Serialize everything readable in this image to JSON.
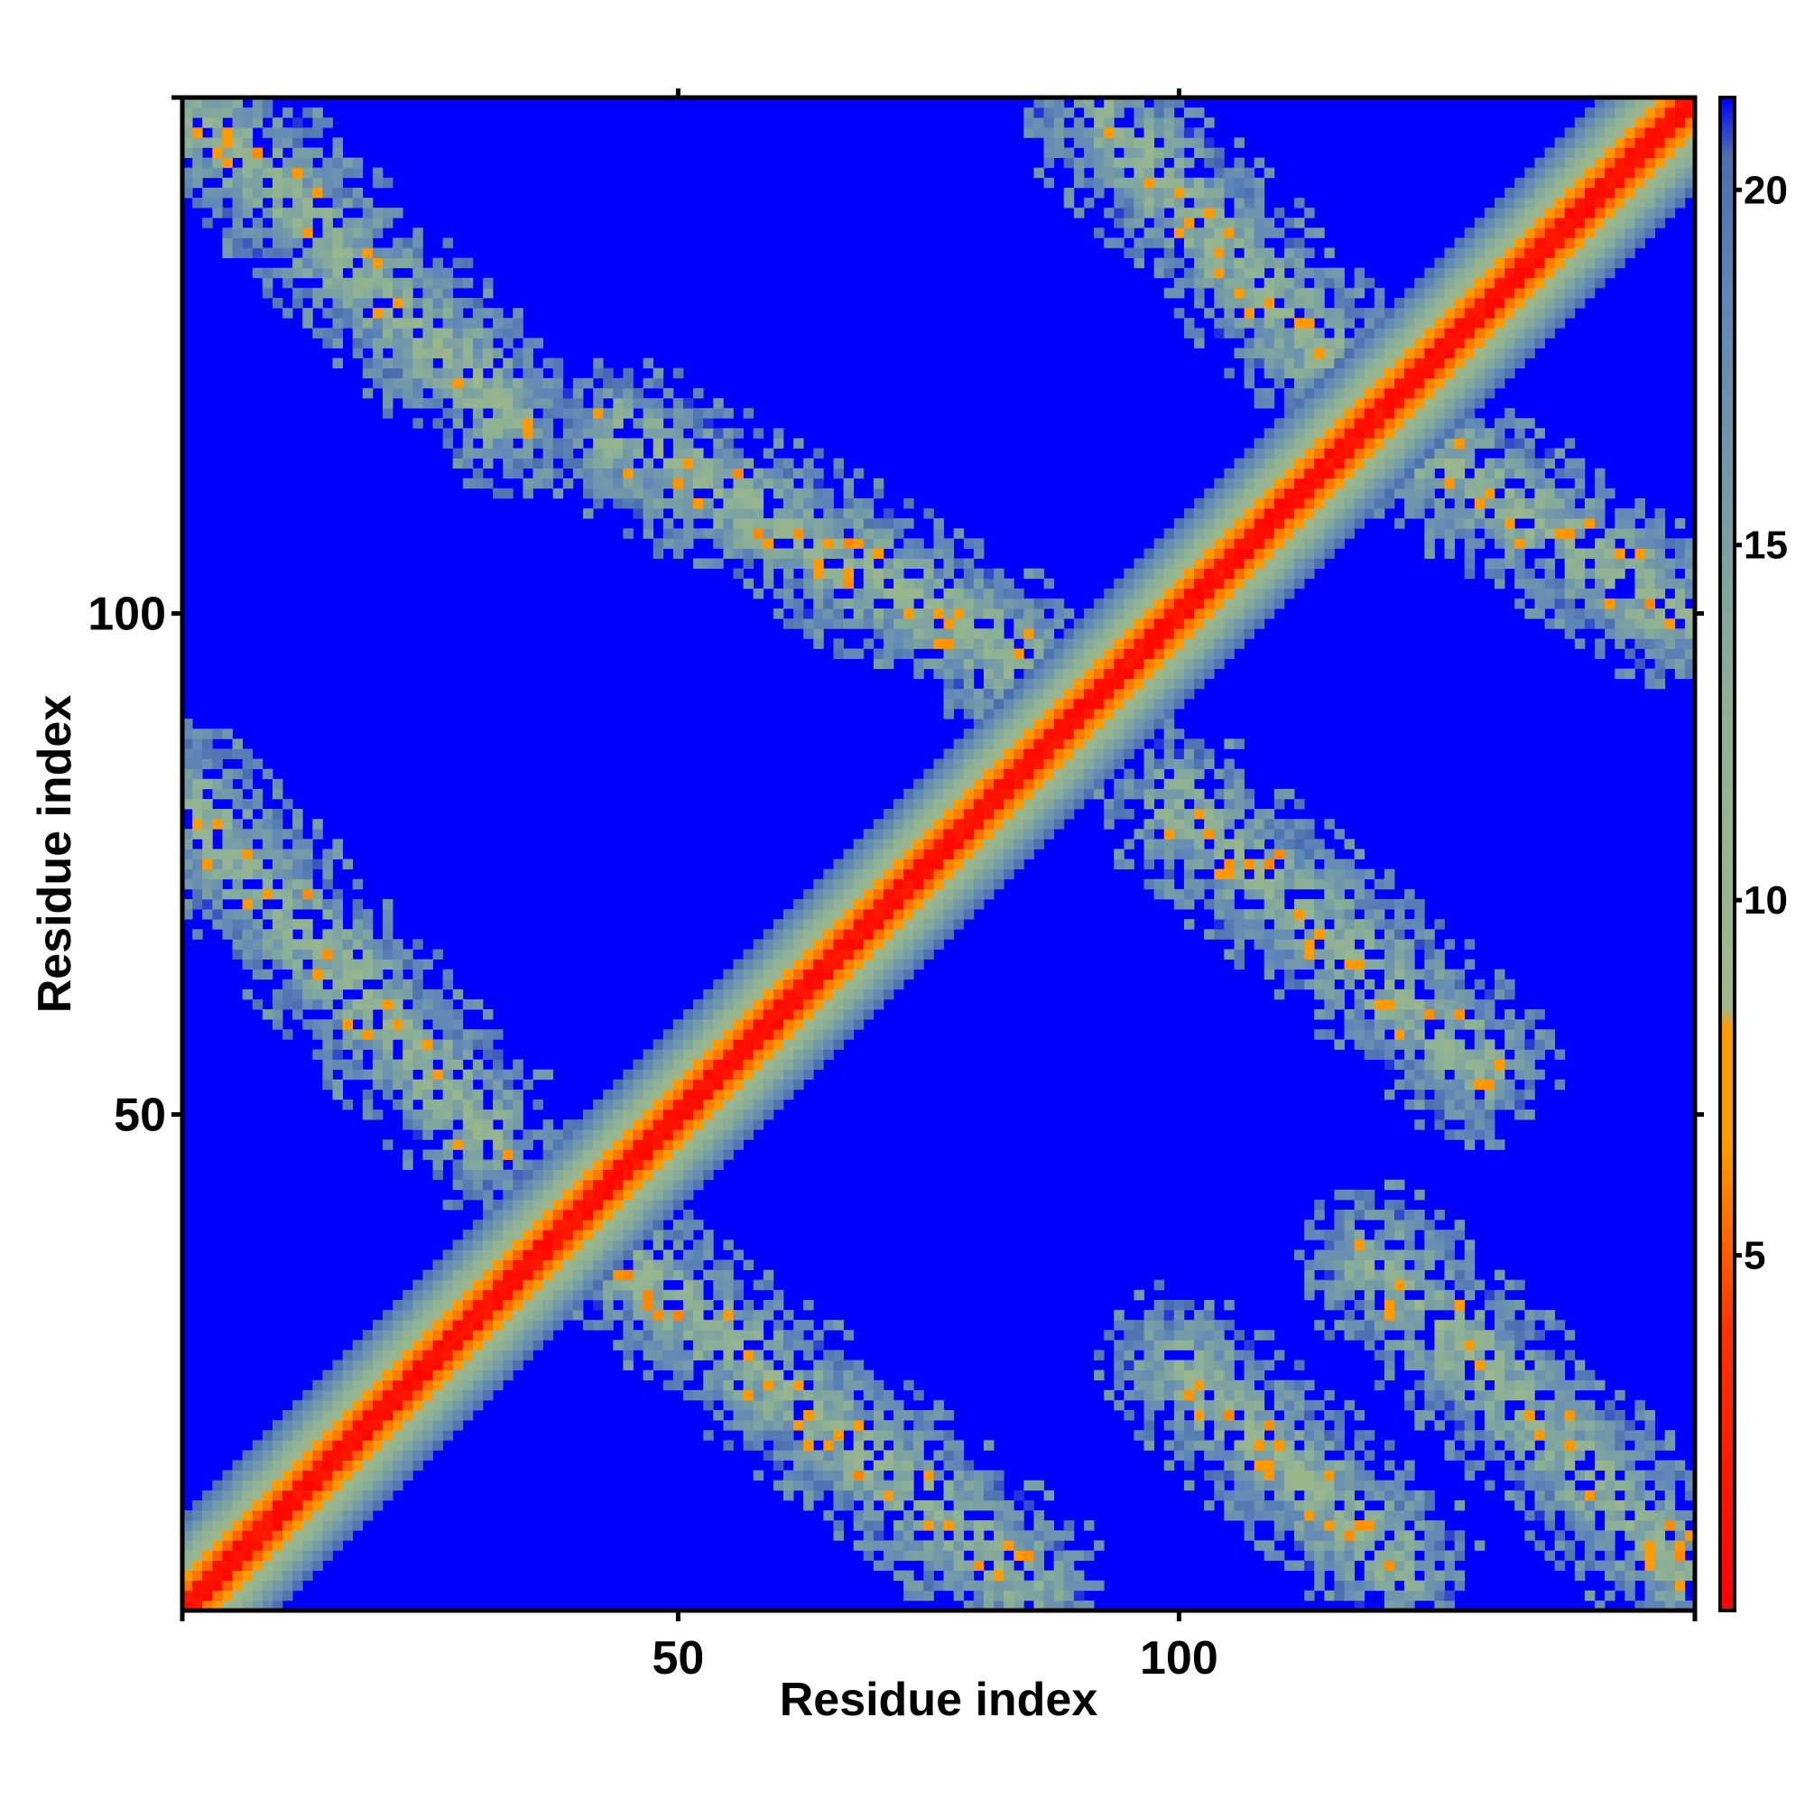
{
  "chart_data": {
    "type": "heatmap",
    "title": "",
    "xlabel": "Residue index",
    "ylabel": "Residue index",
    "n_residues": 151,
    "xlim": [
      1,
      151
    ],
    "ylim": [
      1,
      151
    ],
    "x_ticks": [
      50,
      100
    ],
    "y_ticks": [
      50,
      100
    ],
    "x_tick_labels": [
      "50",
      "100"
    ],
    "y_tick_labels": [
      "50",
      "100"
    ],
    "grid": false,
    "colorbar": {
      "ticks": [
        5,
        10,
        15,
        20
      ],
      "tick_labels": [
        "5",
        "10",
        "15",
        "20"
      ],
      "range": [
        0,
        21.3
      ],
      "stops": [
        {
          "value": 0,
          "color": "#ff0000"
        },
        {
          "value": 4.0,
          "color": "#ff3300"
        },
        {
          "value": 6.5,
          "color": "#ff9900"
        },
        {
          "value": 8.2,
          "color": "#ff9900"
        },
        {
          "value": 8.5,
          "color": "#9fb88a"
        },
        {
          "value": 12.5,
          "color": "#8fb294"
        },
        {
          "value": 18.5,
          "color": "#5f87b8"
        },
        {
          "value": 20.5,
          "color": "#4a6fb0"
        },
        {
          "value": 21.3,
          "color": "#0000ff"
        }
      ],
      "placement": "right"
    },
    "background_value": 21.3,
    "regions": [
      {
        "kind": "diagonal",
        "description": "main diagonal, distance 0 at i=j"
      },
      {
        "kind": "band",
        "x_start": 1,
        "y_start": 151,
        "x_end": 33,
        "y_end": 120
      },
      {
        "kind": "band",
        "x_start": 1,
        "y_start": 81,
        "x_end": 31,
        "y_end": 48
      },
      {
        "kind": "band",
        "x_start": 43,
        "y_start": 37,
        "x_end": 85,
        "y_end": 3
      },
      {
        "kind": "band",
        "x_start": 44,
        "y_start": 118,
        "x_end": 90,
        "y_end": 92
      },
      {
        "kind": "band",
        "x_start": 92,
        "y_start": 150,
        "x_end": 122,
        "y_end": 118
      },
      {
        "kind": "band",
        "x_start": 122,
        "y_start": 118,
        "x_end": 150,
        "y_end": 100
      },
      {
        "kind": "band",
        "x_start": 100,
        "y_start": 81,
        "x_end": 130,
        "y_end": 55
      },
      {
        "kind": "band",
        "x_start": 120,
        "y_start": 35,
        "x_end": 150,
        "y_end": 5
      },
      {
        "kind": "band",
        "x_start": 100,
        "y_start": 25,
        "x_end": 122,
        "y_end": 5
      }
    ]
  }
}
